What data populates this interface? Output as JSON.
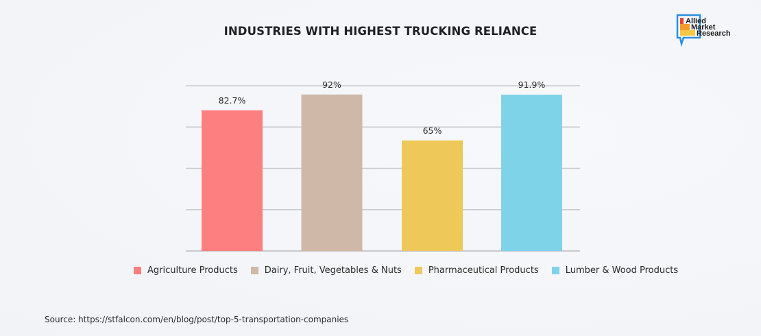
{
  "chart_data": {
    "type": "bar",
    "title": "INDUSTRIES WITH HIGHEST TRUCKING RELIANCE",
    "xlabel": "",
    "ylabel": "",
    "ylim": [
      0,
      100
    ],
    "grid": true,
    "gridlines": [
      0,
      25,
      50,
      75,
      100
    ],
    "legend_position": "bottom",
    "categories": [
      "Agriculture Products",
      "Dairy, Fruit, Vegetables & Nuts",
      "Pharmaceutical Products",
      "Lumber & Wood Products"
    ],
    "values": [
      82.7,
      92,
      65,
      91.9
    ],
    "data_labels": [
      "82.7%",
      "92%",
      "65%",
      "91.9%"
    ],
    "colors": [
      "#fe7f7f",
      "#cfb8a8",
      "#efc85a",
      "#7fd3e9"
    ]
  },
  "logo": {
    "line1": "Allied",
    "line2": "Market",
    "line3": "Research",
    "colors": [
      "#e8472b",
      "#f39a2a",
      "#f7c843",
      "#2a8fe0"
    ]
  },
  "source": "Source: https://stfalcon.com/en/blog/post/top-5-transportation-companies"
}
